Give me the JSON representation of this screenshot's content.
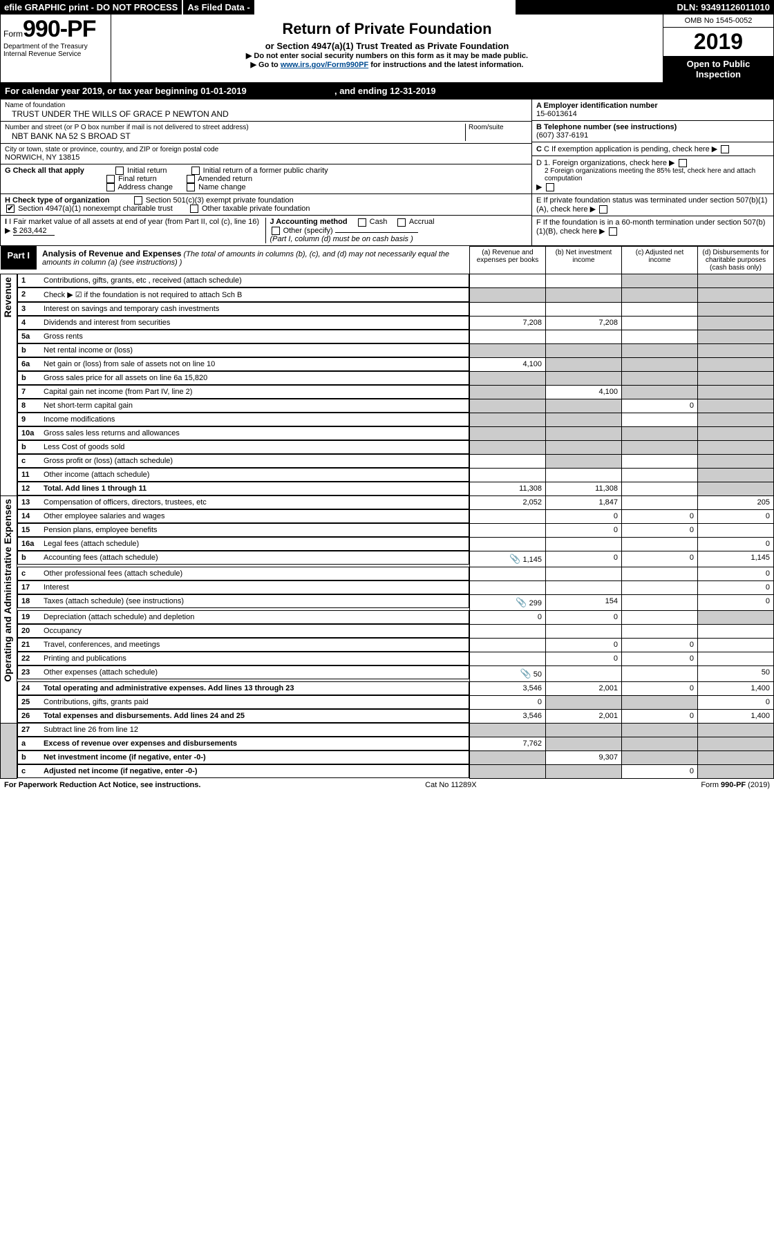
{
  "topbar": {
    "efile": "efile GRAPHIC print - DO NOT PROCESS",
    "asfiled": "As Filed Data -",
    "dln": "DLN: 93491126011010"
  },
  "header": {
    "form_word": "Form",
    "form_num": "990-PF",
    "dept": "Department of the Treasury",
    "irs": "Internal Revenue Service",
    "title": "Return of Private Foundation",
    "subtitle": "or Section 4947(a)(1) Trust Treated as Private Foundation",
    "instr1": "▶ Do not enter social security numbers on this form as it may be made public.",
    "instr2_pre": "▶ Go to ",
    "instr2_link": "www.irs.gov/Form990PF",
    "instr2_post": " for instructions and the latest information.",
    "omb": "OMB No 1545-0052",
    "year": "2019",
    "otp": "Open to Public Inspection"
  },
  "calyear": {
    "text_pre": "For calendar year 2019, or tax year beginning ",
    "begin": "01-01-2019",
    "mid": " , and ending ",
    "end": "12-31-2019"
  },
  "info": {
    "name_label": "Name of foundation",
    "name": "TRUST UNDER THE WILLS OF GRACE P NEWTON AND",
    "addr_label": "Number and street (or P O  box number if mail is not delivered to street address)",
    "room_label": "Room/suite",
    "addr": "NBT BANK NA 52 S BROAD ST",
    "city_label": "City or town, state or province, country, and ZIP or foreign postal code",
    "city": "NORWICH, NY  13815",
    "A_label": "A Employer identification number",
    "A_val": "15-6013614",
    "B_label": "B Telephone number (see instructions)",
    "B_val": "(607) 337-6191",
    "C_label": "C If exemption application is pending, check here",
    "G_label": "G Check all that apply",
    "G_opts": [
      "Initial return",
      "Initial return of a former public charity",
      "Final return",
      "Amended return",
      "Address change",
      "Name change"
    ],
    "D1": "D 1. Foreign organizations, check here",
    "D2": "2 Foreign organizations meeting the 85% test, check here and attach computation",
    "E": "E  If private foundation status was terminated under section 507(b)(1)(A), check here",
    "H_label": "H Check type of organization",
    "H_opt1": "Section 501(c)(3) exempt private foundation",
    "H_opt2": "Section 4947(a)(1) nonexempt charitable trust",
    "H_opt3": "Other taxable private foundation",
    "I_label": "I Fair market value of all assets at end of year (from Part II, col  (c), line 16)",
    "I_val": "$  263,442",
    "J_label": "J Accounting method",
    "J_cash": "Cash",
    "J_accrual": "Accrual",
    "J_other": "Other (specify)",
    "J_note": "(Part I, column (d) must be on cash basis )",
    "F": "F  If the foundation is in a 60-month termination under section 507(b)(1)(B), check here"
  },
  "part1": {
    "label": "Part I",
    "title": "Analysis of Revenue and Expenses",
    "note": " (The total of amounts in columns (b), (c), and (d) may not necessarily equal the amounts in column (a) (see instructions) )",
    "col_a": "(a) Revenue and expenses per books",
    "col_b": "(b) Net investment income",
    "col_c": "(c) Adjusted net income",
    "col_d": "(d) Disbursements for charitable purposes (cash basis only)"
  },
  "vert": {
    "revenue": "Revenue",
    "expenses": "Operating and Administrative Expenses"
  },
  "rows": [
    {
      "n": "1",
      "d": "Contributions, gifts, grants, etc , received (attach schedule)",
      "a": "",
      "b": "",
      "c": "",
      "dd": "",
      "shade_c": true,
      "shade_d": true
    },
    {
      "n": "2",
      "d": "Check ▶ ☑ if the foundation is not required to attach Sch B",
      "a": "",
      "b": "",
      "c": "",
      "dd": "",
      "shade_a": true,
      "shade_b": true,
      "shade_c": true,
      "shade_d": true
    },
    {
      "n": "3",
      "d": "Interest on savings and temporary cash investments",
      "a": "",
      "b": "",
      "c": "",
      "dd": "",
      "shade_d": true
    },
    {
      "n": "4",
      "d": "Dividends and interest from securities",
      "a": "7,208",
      "b": "7,208",
      "c": "",
      "dd": "",
      "shade_d": true
    },
    {
      "n": "5a",
      "d": "Gross rents",
      "a": "",
      "b": "",
      "c": "",
      "dd": "",
      "shade_d": true
    },
    {
      "n": "b",
      "d": "Net rental income or (loss)",
      "a": "",
      "b": "",
      "c": "",
      "dd": "",
      "shade_a": true,
      "shade_b": true,
      "shade_c": true,
      "shade_d": true
    },
    {
      "n": "6a",
      "d": "Net gain or (loss) from sale of assets not on line 10",
      "a": "4,100",
      "b": "",
      "c": "",
      "dd": "",
      "shade_b": true,
      "shade_c": true,
      "shade_d": true
    },
    {
      "n": "b",
      "d": "Gross sales price for all assets on line 6a          15,820",
      "a": "",
      "b": "",
      "c": "",
      "dd": "",
      "shade_a": true,
      "shade_b": true,
      "shade_c": true,
      "shade_d": true
    },
    {
      "n": "7",
      "d": "Capital gain net income (from Part IV, line 2)",
      "a": "",
      "b": "4,100",
      "c": "",
      "dd": "",
      "shade_a": true,
      "shade_c": true,
      "shade_d": true
    },
    {
      "n": "8",
      "d": "Net short-term capital gain",
      "a": "",
      "b": "",
      "c": "0",
      "dd": "",
      "shade_a": true,
      "shade_b": true,
      "shade_d": true
    },
    {
      "n": "9",
      "d": "Income modifications",
      "a": "",
      "b": "",
      "c": "",
      "dd": "",
      "shade_a": true,
      "shade_b": true,
      "shade_d": true
    },
    {
      "n": "10a",
      "d": "Gross sales less returns and allowances",
      "a": "",
      "b": "",
      "c": "",
      "dd": "",
      "shade_a": true,
      "shade_b": true,
      "shade_c": true,
      "shade_d": true
    },
    {
      "n": "b",
      "d": "Less  Cost of goods sold",
      "a": "",
      "b": "",
      "c": "",
      "dd": "",
      "shade_a": true,
      "shade_b": true,
      "shade_c": true,
      "shade_d": true
    },
    {
      "n": "c",
      "d": "Gross profit or (loss) (attach schedule)",
      "a": "",
      "b": "",
      "c": "",
      "dd": "",
      "shade_b": true,
      "shade_d": true
    },
    {
      "n": "11",
      "d": "Other income (attach schedule)",
      "a": "",
      "b": "",
      "c": "",
      "dd": "",
      "shade_d": true
    },
    {
      "n": "12",
      "d": "Total. Add lines 1 through 11",
      "a": "11,308",
      "b": "11,308",
      "c": "",
      "dd": "",
      "bold": true,
      "shade_d": true
    }
  ],
  "exp_rows": [
    {
      "n": "13",
      "d": "Compensation of officers, directors, trustees, etc",
      "a": "2,052",
      "b": "1,847",
      "c": "",
      "dd": "205"
    },
    {
      "n": "14",
      "d": "Other employee salaries and wages",
      "a": "",
      "b": "0",
      "c": "0",
      "dd": "0"
    },
    {
      "n": "15",
      "d": "Pension plans, employee benefits",
      "a": "",
      "b": "0",
      "c": "0",
      "dd": ""
    },
    {
      "n": "16a",
      "d": "Legal fees (attach schedule)",
      "a": "",
      "b": "",
      "c": "",
      "dd": "0"
    },
    {
      "n": "b",
      "d": "Accounting fees (attach schedule)",
      "a": "1,145",
      "b": "0",
      "c": "0",
      "dd": "1,145",
      "icon": true
    },
    {
      "n": "c",
      "d": "Other professional fees (attach schedule)",
      "a": "",
      "b": "",
      "c": "",
      "dd": "0"
    },
    {
      "n": "17",
      "d": "Interest",
      "a": "",
      "b": "",
      "c": "",
      "dd": "0"
    },
    {
      "n": "18",
      "d": "Taxes (attach schedule) (see instructions)",
      "a": "299",
      "b": "154",
      "c": "",
      "dd": "0",
      "icon": true
    },
    {
      "n": "19",
      "d": "Depreciation (attach schedule) and depletion",
      "a": "0",
      "b": "0",
      "c": "",
      "dd": "",
      "shade_d": true
    },
    {
      "n": "20",
      "d": "Occupancy",
      "a": "",
      "b": "",
      "c": "",
      "dd": ""
    },
    {
      "n": "21",
      "d": "Travel, conferences, and meetings",
      "a": "",
      "b": "0",
      "c": "0",
      "dd": ""
    },
    {
      "n": "22",
      "d": "Printing and publications",
      "a": "",
      "b": "0",
      "c": "0",
      "dd": ""
    },
    {
      "n": "23",
      "d": "Other expenses (attach schedule)",
      "a": "50",
      "b": "",
      "c": "",
      "dd": "50",
      "icon": true
    },
    {
      "n": "24",
      "d": "Total operating and administrative expenses. Add lines 13 through 23",
      "a": "3,546",
      "b": "2,001",
      "c": "0",
      "dd": "1,400",
      "bold": true
    },
    {
      "n": "25",
      "d": "Contributions, gifts, grants paid",
      "a": "0",
      "b": "",
      "c": "",
      "dd": "0",
      "shade_b": true,
      "shade_c": true
    },
    {
      "n": "26",
      "d": "Total expenses and disbursements. Add lines 24 and 25",
      "a": "3,546",
      "b": "2,001",
      "c": "0",
      "dd": "1,400",
      "bold": true
    }
  ],
  "net_rows": [
    {
      "n": "27",
      "d": "Subtract line 26 from line 12",
      "a": "",
      "b": "",
      "c": "",
      "dd": "",
      "shade_a": true,
      "shade_b": true,
      "shade_c": true,
      "shade_d": true
    },
    {
      "n": "a",
      "d": "Excess of revenue over expenses and disbursements",
      "a": "7,762",
      "b": "",
      "c": "",
      "dd": "",
      "bold": true,
      "shade_b": true,
      "shade_c": true,
      "shade_d": true
    },
    {
      "n": "b",
      "d": "Net investment income (if negative, enter -0-)",
      "a": "",
      "b": "9,307",
      "c": "",
      "dd": "",
      "bold": true,
      "shade_a": true,
      "shade_c": true,
      "shade_d": true
    },
    {
      "n": "c",
      "d": "Adjusted net income (if negative, enter -0-)",
      "a": "",
      "b": "",
      "c": "0",
      "dd": "",
      "bold": true,
      "shade_a": true,
      "shade_b": true,
      "shade_d": true
    }
  ],
  "footer": {
    "left": "For Paperwork Reduction Act Notice, see instructions.",
    "mid": "Cat  No  11289X",
    "right": "Form 990-PF (2019)"
  },
  "colors": {
    "header_bg": "#000000",
    "header_fg": "#ffffff",
    "shade": "#cccccc",
    "link": "#004b91"
  }
}
